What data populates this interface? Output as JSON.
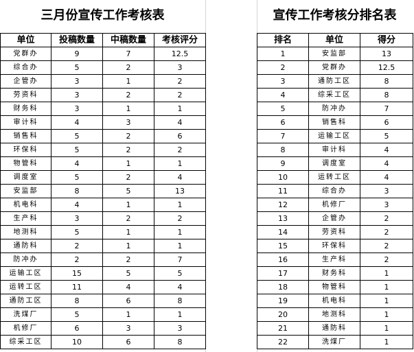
{
  "left": {
    "title": "三月份宣传工作考核表",
    "headers": [
      "单位",
      "投稿数量",
      "中稿数量",
      "考核评分"
    ],
    "rows": [
      [
        "党群办",
        "9",
        "7",
        "12.5"
      ],
      [
        "综合办",
        "5",
        "2",
        "3"
      ],
      [
        "企管办",
        "3",
        "1",
        "2"
      ],
      [
        "劳资科",
        "3",
        "2",
        "2"
      ],
      [
        "财务科",
        "3",
        "1",
        "1"
      ],
      [
        "审计科",
        "4",
        "3",
        "4"
      ],
      [
        "销售科",
        "5",
        "2",
        "6"
      ],
      [
        "环保科",
        "5",
        "2",
        "2"
      ],
      [
        "物管科",
        "4",
        "1",
        "1"
      ],
      [
        "调度室",
        "5",
        "2",
        "4"
      ],
      [
        "安监部",
        "8",
        "5",
        "13"
      ],
      [
        "机电科",
        "4",
        "1",
        "1"
      ],
      [
        "生产科",
        "3",
        "2",
        "2"
      ],
      [
        "地测科",
        "5",
        "1",
        "1"
      ],
      [
        "通防科",
        "2",
        "1",
        "1"
      ],
      [
        "防冲办",
        "2",
        "2",
        "7"
      ],
      [
        "运输工区",
        "15",
        "5",
        "5"
      ],
      [
        "运转工区",
        "11",
        "4",
        "4"
      ],
      [
        "通防工区",
        "8",
        "6",
        "8"
      ],
      [
        "洗煤厂",
        "5",
        "1",
        "1"
      ],
      [
        "机修厂",
        "6",
        "3",
        "3"
      ],
      [
        "综采工区",
        "10",
        "6",
        "8"
      ]
    ]
  },
  "right": {
    "title": "宣传工作考核分排名表",
    "headers": [
      "排名",
      "单位",
      "得分"
    ],
    "rows": [
      [
        "1",
        "安监部",
        "13"
      ],
      [
        "2",
        "党群办",
        "12.5"
      ],
      [
        "3",
        "通防工区",
        "8"
      ],
      [
        "4",
        "综采工区",
        "8"
      ],
      [
        "5",
        "防冲办",
        "7"
      ],
      [
        "6",
        "销售科",
        "6"
      ],
      [
        "7",
        "运输工区",
        "5"
      ],
      [
        "8",
        "审计科",
        "4"
      ],
      [
        "9",
        "调度室",
        "4"
      ],
      [
        "10",
        "运转工区",
        "4"
      ],
      [
        "11",
        "综合办",
        "3"
      ],
      [
        "12",
        "机修厂",
        "3"
      ],
      [
        "13",
        "企管办",
        "2"
      ],
      [
        "14",
        "劳资科",
        "2"
      ],
      [
        "15",
        "环保科",
        "2"
      ],
      [
        "16",
        "生产科",
        "2"
      ],
      [
        "17",
        "财务科",
        "1"
      ],
      [
        "18",
        "物管科",
        "1"
      ],
      [
        "19",
        "机电科",
        "1"
      ],
      [
        "20",
        "地测科",
        "1"
      ],
      [
        "21",
        "通防科",
        "1"
      ],
      [
        "22",
        "洗煤厂",
        "1"
      ]
    ]
  }
}
